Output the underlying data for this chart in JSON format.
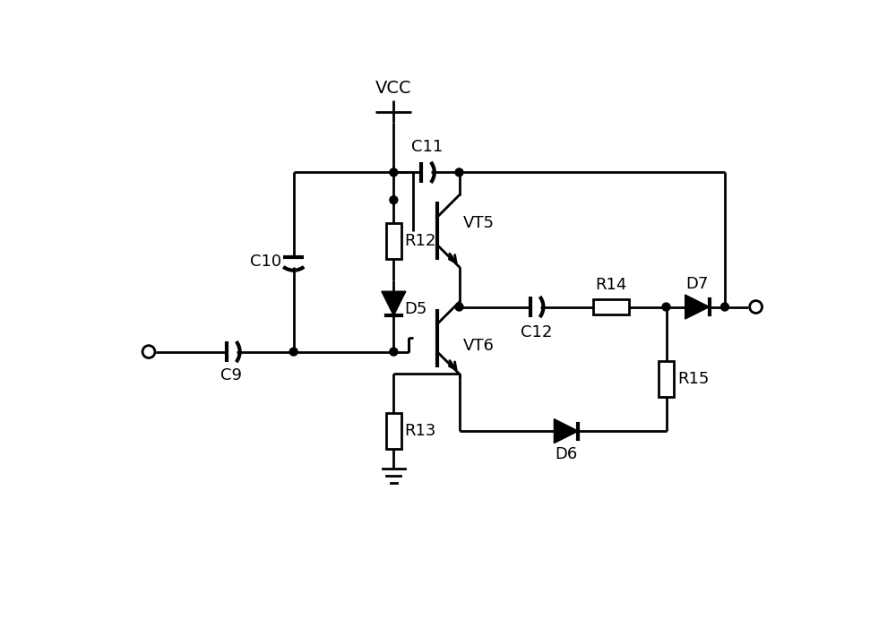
{
  "bg_color": "#ffffff",
  "line_color": "#000000",
  "lw": 2.0,
  "lw_thick": 3.0,
  "fs": 13,
  "fig_w": 10.0,
  "fig_h": 6.92,
  "dpi": 100,
  "xlim": [
    0,
    10
  ],
  "ylim": [
    0,
    6.92
  ]
}
